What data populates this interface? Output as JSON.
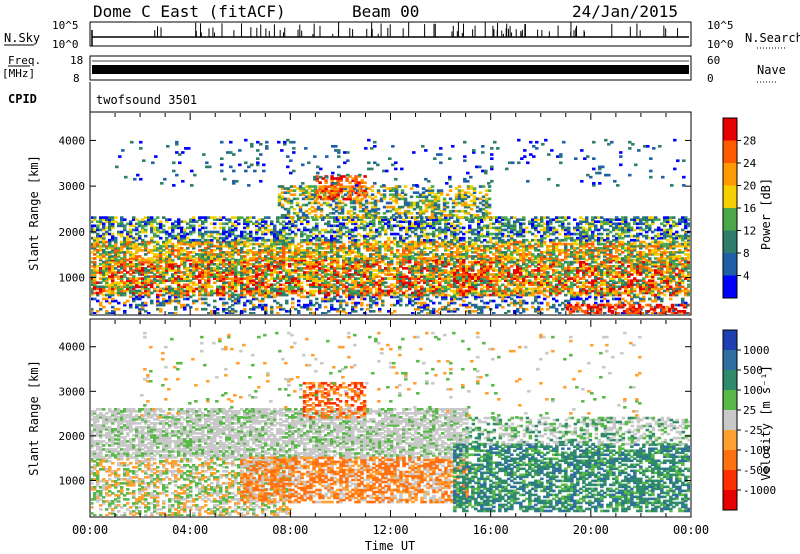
{
  "header": {
    "station": "Dome C East (fitACF)",
    "beam": "Beam 00",
    "date": "24/Jan/2015"
  },
  "strips": {
    "nsky_label": "N.Sky",
    "nsky_ticks": [
      "10^5",
      "10^0"
    ],
    "nsearch_label": "N.Search",
    "nsearch_ticks": [
      "10^5",
      "10^0"
    ],
    "freq_label": "Freq.",
    "freq_unit": "[MHz]",
    "freq_ticks": [
      "18",
      "8"
    ],
    "nave_label": "Nave",
    "nave_ticks": [
      "60",
      "0"
    ],
    "cpid_label": "CPID",
    "cpid_value": "twofsound 3501"
  },
  "chart_data": [
    {
      "type": "heatmap",
      "name": "power-panel",
      "ylabel": "Slant Range [km]",
      "ylim": [
        180,
        4600
      ],
      "yticks": [
        1000,
        2000,
        3000,
        4000
      ],
      "xlim": [
        0,
        24
      ],
      "colorbar": {
        "label": "Power [dB]",
        "ticks": [
          "28",
          "24",
          "20",
          "16",
          "12",
          "8",
          "4"
        ],
        "colors": [
          "#e60000",
          "#ff5a00",
          "#ff9a00",
          "#f5d000",
          "#4aa84a",
          "#2e7d6a",
          "#1f5fa8",
          "#0000ff"
        ]
      }
    },
    {
      "type": "heatmap",
      "name": "velocity-panel",
      "ylabel": "Slant Range [km]",
      "ylim": [
        180,
        4600
      ],
      "yticks": [
        1000,
        2000,
        3000,
        4000
      ],
      "xlim": [
        0,
        24
      ],
      "xticks": [
        "00:00",
        "04:00",
        "08:00",
        "12:00",
        "16:00",
        "20:00",
        "00:00"
      ],
      "xlabel": "Time UT",
      "colorbar": {
        "label": "Velocity [m s⁻¹]",
        "ticks": [
          "1000",
          "500",
          "100",
          "25",
          "-25",
          "-100",
          "-500",
          "-1000"
        ],
        "colors": [
          "#1f3fb0",
          "#2e6ea0",
          "#2e8a6a",
          "#58b848",
          "#c8c8c8",
          "#ffa030",
          "#ff7010",
          "#ff3000",
          "#e60000"
        ]
      }
    }
  ]
}
